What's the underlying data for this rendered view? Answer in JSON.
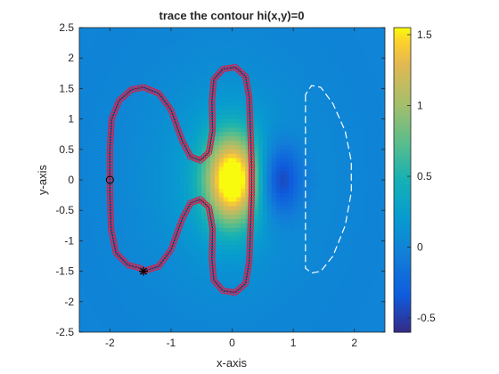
{
  "chart_data": {
    "type": "contour",
    "title": "trace the contour hi(x,y)=0",
    "xlabel": "x-axis",
    "ylabel": "y-axis",
    "xlim": [
      -2.5,
      2.5
    ],
    "ylim": [
      -2.5,
      2.5
    ],
    "xticks": [
      -2,
      -1,
      0,
      1,
      2
    ],
    "yticks": [
      -2.5,
      -2,
      -1.5,
      -1,
      -0.5,
      0,
      0.5,
      1,
      1.5,
      2,
      2.5
    ],
    "xtick_labels": [
      "-2",
      "-1",
      "0",
      "1",
      "2"
    ],
    "ytick_labels": [
      "-2.5",
      "-2",
      "-1.5",
      "-1",
      "-0.5",
      "0",
      "0.5",
      "1",
      "1.5",
      "2",
      "2.5"
    ],
    "colorbar": {
      "colormap": "parula",
      "range": [
        -0.6,
        1.55
      ],
      "ticks": [
        -0.5,
        0,
        0.5,
        1,
        1.5
      ],
      "tick_labels": [
        "-0.5",
        "0",
        "0.5",
        "1",
        "1.5"
      ]
    },
    "background_level": 0,
    "blobs": [
      {
        "x": 0,
        "y": 0,
        "sx": 0.3,
        "sy": 0.5,
        "amp": 1.55
      },
      {
        "x": -0.1,
        "y": 0.05,
        "sx": 0.8,
        "sy": 1.1,
        "amp": 0.3
      },
      {
        "x": 0.78,
        "y": 0,
        "sx": 0.25,
        "sy": 0.42,
        "amp": -0.62
      }
    ],
    "traced_contour": {
      "series": "hi(x,y)=0",
      "marker": "o",
      "marker_color": "#d6204a",
      "line_color": "#2a2a5a",
      "points": [
        [
          -1.45,
          -1.5
        ],
        [
          -1.5,
          -1.45
        ],
        [
          -1.7,
          -1.4
        ],
        [
          -1.9,
          -1.2
        ],
        [
          -1.98,
          -0.8
        ],
        [
          -2.0,
          -0.2
        ],
        [
          -2.0,
          0.5
        ],
        [
          -1.97,
          1.0
        ],
        [
          -1.85,
          1.3
        ],
        [
          -1.65,
          1.48
        ],
        [
          -1.45,
          1.52
        ],
        [
          -1.2,
          1.42
        ],
        [
          -1.0,
          1.15
        ],
        [
          -0.82,
          0.65
        ],
        [
          -0.68,
          0.38
        ],
        [
          -0.52,
          0.32
        ],
        [
          -0.38,
          0.45
        ],
        [
          -0.32,
          0.8
        ],
        [
          -0.33,
          1.3
        ],
        [
          -0.3,
          1.65
        ],
        [
          -0.15,
          1.82
        ],
        [
          0.05,
          1.85
        ],
        [
          0.22,
          1.7
        ],
        [
          0.28,
          1.35
        ],
        [
          0.3,
          0.8
        ],
        [
          0.32,
          0.2
        ],
        [
          0.32,
          -0.2
        ],
        [
          0.3,
          -0.8
        ],
        [
          0.28,
          -1.35
        ],
        [
          0.22,
          -1.7
        ],
        [
          0.05,
          -1.85
        ],
        [
          -0.15,
          -1.82
        ],
        [
          -0.3,
          -1.65
        ],
        [
          -0.33,
          -1.3
        ],
        [
          -0.32,
          -0.8
        ],
        [
          -0.38,
          -0.45
        ],
        [
          -0.52,
          -0.32
        ],
        [
          -0.68,
          -0.38
        ],
        [
          -0.82,
          -0.65
        ],
        [
          -1.0,
          -1.15
        ],
        [
          -1.2,
          -1.42
        ],
        [
          -1.45,
          -1.5
        ]
      ]
    },
    "dashed_contour": {
      "color": "#ffffff",
      "points": [
        [
          1.2,
          1.4
        ],
        [
          1.2,
          0.5
        ],
        [
          1.2,
          -0.5
        ],
        [
          1.2,
          -1.45
        ],
        [
          1.3,
          -1.53
        ],
        [
          1.45,
          -1.5
        ],
        [
          1.65,
          -1.25
        ],
        [
          1.85,
          -0.75
        ],
        [
          1.95,
          -0.2
        ],
        [
          1.95,
          0.3
        ],
        [
          1.85,
          0.8
        ],
        [
          1.65,
          1.25
        ],
        [
          1.45,
          1.52
        ],
        [
          1.3,
          1.55
        ],
        [
          1.2,
          1.4
        ]
      ]
    },
    "start_marker": {
      "x": -1.45,
      "y": -1.5,
      "symbol": "*"
    },
    "end_marker": {
      "x": -2.0,
      "y": 0,
      "symbol": "o"
    }
  }
}
